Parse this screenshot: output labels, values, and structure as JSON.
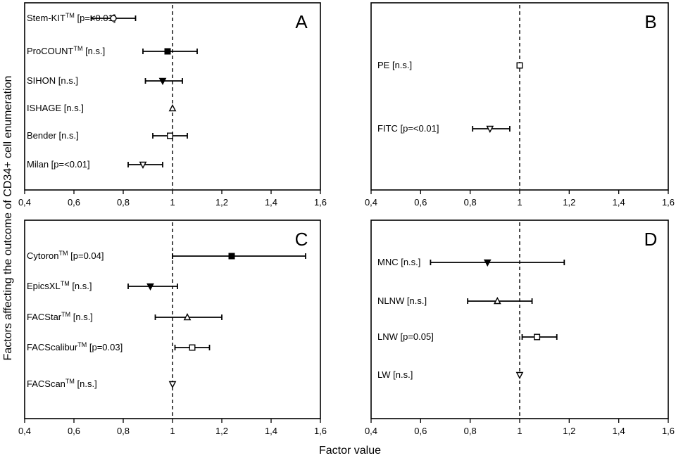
{
  "figure": {
    "ylabel": "Factors affecting the outcome of CD34+ cell enumeration",
    "xlabel": "Factor value"
  },
  "chart_data": [
    {
      "type": "scatter",
      "panel": "A",
      "reference_value": 1,
      "markers": [
        "circle-open",
        "square-filled",
        "triangle-down-filled",
        "triangle-up-open",
        "square-open",
        "triangle-down-open"
      ],
      "rows": [
        {
          "name": "Stem-KIT",
          "sup": "TM",
          "suffix": " [p=<0.01]",
          "value": 0.76,
          "low": 0.67,
          "high": 0.85
        },
        {
          "name": "ProCOUNT",
          "sup": "TM",
          "suffix": " [n.s.]",
          "value": 0.98,
          "low": 0.88,
          "high": 1.1
        },
        {
          "name": "SIHON [n.s.]",
          "sup": "",
          "suffix": "",
          "value": 0.96,
          "low": 0.89,
          "high": 1.04
        },
        {
          "name": "ISHAGE [n.s.]",
          "sup": "",
          "suffix": "",
          "value": 1.0,
          "low": null,
          "high": null
        },
        {
          "name": "Bender [n.s.]",
          "sup": "",
          "suffix": "",
          "value": 0.99,
          "low": 0.92,
          "high": 1.06
        },
        {
          "name": "Milan [p=<0.01]",
          "sup": "",
          "suffix": "",
          "value": 0.88,
          "low": 0.82,
          "high": 0.96
        }
      ]
    },
    {
      "type": "scatter",
      "panel": "B",
      "reference_value": 1,
      "markers": [
        "square-open",
        "triangle-down-open"
      ],
      "rows": [
        {
          "name": "PE [n.s.]",
          "sup": "",
          "suffix": "",
          "value": 1.0,
          "low": null,
          "high": null
        },
        {
          "name": "FITC [p=<0.01]",
          "sup": "",
          "suffix": "",
          "value": 0.88,
          "low": 0.81,
          "high": 0.96
        }
      ]
    },
    {
      "type": "scatter",
      "panel": "C",
      "reference_value": 1,
      "markers": [
        "square-filled",
        "triangle-down-filled",
        "triangle-up-open",
        "square-open",
        "triangle-down-open"
      ],
      "rows": [
        {
          "name": "Cytoron",
          "sup": "TM",
          "suffix": " [p=0.04]",
          "value": 1.24,
          "low": 1.0,
          "high": 1.54
        },
        {
          "name": "EpicsXL",
          "sup": "TM",
          "suffix": " [n.s.]",
          "value": 0.91,
          "low": 0.82,
          "high": 1.02
        },
        {
          "name": "FACStar",
          "sup": "TM",
          "suffix": " [n.s.]",
          "value": 1.06,
          "low": 0.93,
          "high": 1.2
        },
        {
          "name": "FACScalibur",
          "sup": "TM",
          "suffix": " [p=0.03]",
          "value": 1.08,
          "low": 1.01,
          "high": 1.15
        },
        {
          "name": "FACScan",
          "sup": "TM",
          "suffix": " [n.s.]",
          "value": 1.0,
          "low": null,
          "high": null
        }
      ]
    },
    {
      "type": "scatter",
      "panel": "D",
      "reference_value": 1,
      "markers": [
        "triangle-down-filled",
        "triangle-up-open",
        "square-open",
        "triangle-down-open"
      ],
      "rows": [
        {
          "name": "MNC [n.s.]",
          "sup": "",
          "suffix": "",
          "value": 0.87,
          "low": 0.64,
          "high": 1.18
        },
        {
          "name": "NLNW [n.s.]",
          "sup": "",
          "suffix": "",
          "value": 0.91,
          "low": 0.79,
          "high": 1.05
        },
        {
          "name": "LNW [p=0.05]",
          "sup": "",
          "suffix": "",
          "value": 1.07,
          "low": 1.01,
          "high": 1.15
        },
        {
          "name": "LW [n.s.]",
          "sup": "",
          "suffix": "",
          "value": 1.0,
          "low": null,
          "high": null
        }
      ]
    }
  ],
  "axes": {
    "xlim": [
      0.4,
      1.6
    ],
    "xticks": [
      "0,4",
      "0,6",
      "0,8",
      "1",
      "1,2",
      "1,4",
      "1,6"
    ],
    "tick_values": [
      0.4,
      0.6,
      0.8,
      1.0,
      1.2,
      1.4,
      1.6
    ],
    "grid": false
  }
}
